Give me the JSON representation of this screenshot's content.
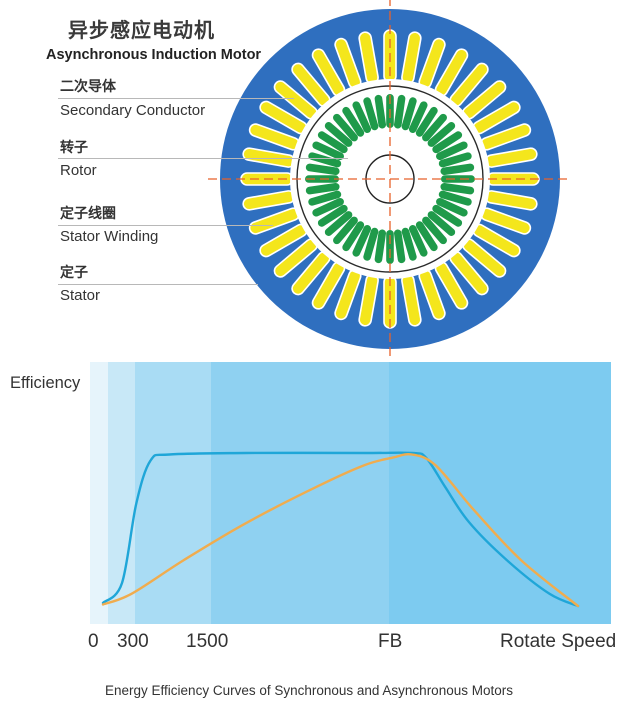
{
  "motor": {
    "title_cn": "异步感应电动机",
    "title_en": "Asynchronous Induction Motor",
    "labels": [
      {
        "cn": "二次导体",
        "en": "Secondary Conductor"
      },
      {
        "cn": "转子",
        "en": "Rotor"
      },
      {
        "cn": "定子线圈",
        "en": "Stator Winding"
      },
      {
        "cn": "定子",
        "en": "Stator"
      }
    ],
    "colors": {
      "stator": "#2f6fbf",
      "stator_winding": "#f4e61c",
      "rotor_bars": "#1f9a4a",
      "center_lines": "#e8622a"
    },
    "stator_slot_count": 36,
    "rotor_bar_count": 44
  },
  "chart_data": {
    "type": "line",
    "ylabel": "Efficiency",
    "xlabel": "Rotate Speed",
    "x_ticks": [
      "0",
      "300",
      "1500",
      "FB"
    ],
    "caption": "Energy Efficiency Curves of Synchronous and Asynchronous Motors",
    "series": [
      {
        "color": "#1fa6d8",
        "points": [
          [
            0.0,
            0.02
          ],
          [
            0.04,
            0.15
          ],
          [
            0.07,
            0.67
          ],
          [
            0.1,
            0.95
          ],
          [
            0.14,
            0.99
          ],
          [
            0.3,
            1.0
          ],
          [
            0.55,
            1.0
          ],
          [
            0.65,
            1.0
          ],
          [
            0.68,
            0.97
          ],
          [
            0.72,
            0.78
          ],
          [
            0.77,
            0.55
          ],
          [
            0.85,
            0.3
          ],
          [
            0.94,
            0.08
          ],
          [
            1.0,
            0.0
          ]
        ]
      },
      {
        "color": "#f0ac4e",
        "points": [
          [
            0.0,
            0.01
          ],
          [
            0.06,
            0.08
          ],
          [
            0.17,
            0.3
          ],
          [
            0.3,
            0.54
          ],
          [
            0.45,
            0.78
          ],
          [
            0.55,
            0.92
          ],
          [
            0.61,
            0.97
          ],
          [
            0.65,
            0.99
          ],
          [
            0.7,
            0.92
          ],
          [
            0.78,
            0.63
          ],
          [
            0.88,
            0.3
          ],
          [
            1.0,
            0.0
          ]
        ]
      }
    ],
    "bands": [
      "#e6f4fb",
      "#c8e8f7",
      "#a9dcf4",
      "#8fd1f1",
      "#7dcbf0"
    ]
  }
}
